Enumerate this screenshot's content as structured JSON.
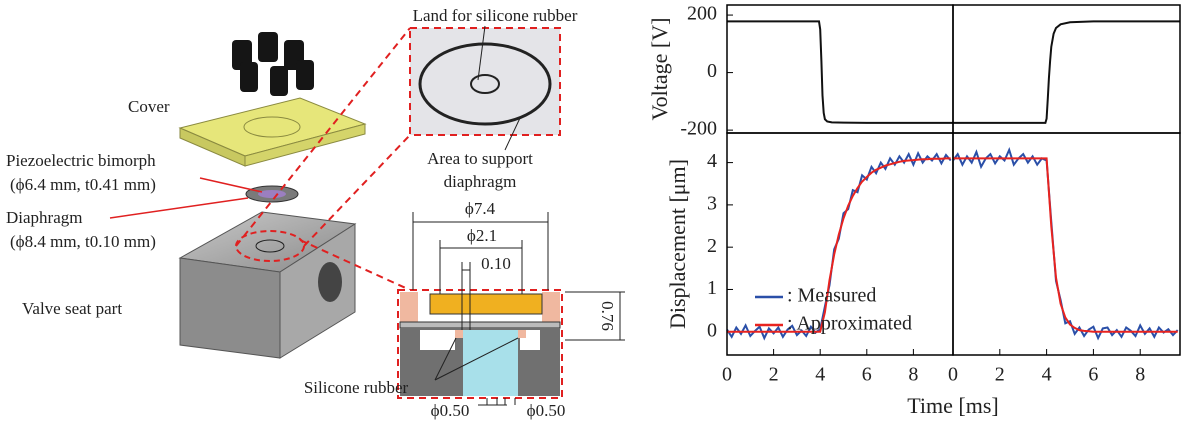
{
  "diagram": {
    "labels": [
      "Land for silicone rubber",
      "Cover",
      "Piezoelectric bimorph",
      "(ϕ6.4 mm, t0.41 mm)",
      "Diaphragm",
      "(ϕ8.4 mm, t0.10 mm)",
      "Area to support",
      "diaphragm",
      "Valve seat part",
      "ϕ7.4",
      "ϕ2.1",
      "0.10",
      "0.76",
      "Silicone rubber",
      "ϕ0.50",
      "ϕ0.50"
    ]
  },
  "chart_data": [
    {
      "type": "line",
      "ylabel": "Voltage [V]",
      "xlim": [
        0,
        9.7
      ],
      "ylim": [
        -210,
        235
      ],
      "yticks": [
        200,
        0,
        -200
      ],
      "x": [
        0,
        3.95,
        4.0,
        4.05,
        4.1,
        4.15,
        4.2,
        4.3,
        4.5,
        5,
        6,
        7,
        8,
        9,
        9.7
      ],
      "series": [
        {
          "color": "#111111",
          "values": [
            178,
            178,
            150,
            40,
            -80,
            -140,
            -162,
            -170,
            -173,
            -174,
            -175,
            -175,
            -175,
            -175,
            -175
          ]
        }
      ]
    },
    {
      "type": "line",
      "xlim": [
        0,
        9.7
      ],
      "ylim": [
        -210,
        235
      ],
      "x": [
        0,
        3.95,
        4.0,
        4.05,
        4.1,
        4.15,
        4.2,
        4.3,
        4.4,
        4.6,
        5,
        6,
        7,
        8,
        9,
        9.7
      ],
      "series": [
        {
          "color": "#111111",
          "values": [
            -175,
            -175,
            -160,
            -90,
            -20,
            40,
            90,
            135,
            155,
            168,
            175,
            178,
            178,
            178,
            178,
            178
          ]
        }
      ]
    },
    {
      "type": "line",
      "ylabel": "Displacement [μm]",
      "xlabel": "Time [ms]",
      "xlim": [
        0,
        9.7
      ],
      "ylim": [
        -0.55,
        4.7
      ],
      "xticks": [
        0,
        2,
        4,
        6,
        8
      ],
      "yticks": [
        0,
        1,
        2,
        3,
        4
      ],
      "legend": "lower-right",
      "x": [
        0,
        0.2,
        0.4,
        0.6,
        0.8,
        1.0,
        1.2,
        1.4,
        1.6,
        1.8,
        2.0,
        2.2,
        2.4,
        2.6,
        2.8,
        3.0,
        3.2,
        3.4,
        3.6,
        3.8,
        4.0,
        4.2,
        4.4,
        4.6,
        4.8,
        5.0,
        5.2,
        5.4,
        5.6,
        5.8,
        6.0,
        6.2,
        6.4,
        6.6,
        6.8,
        7.0,
        7.2,
        7.4,
        7.6,
        7.8,
        8.0,
        8.2,
        8.4,
        8.6,
        8.8,
        9.0,
        9.2,
        9.4,
        9.6
      ],
      "series": [
        {
          "name": ": Measured",
          "color": "#2a4fa8",
          "values": [
            0.05,
            -0.12,
            0.1,
            -0.05,
            0.15,
            -0.1,
            0.02,
            0.12,
            -0.15,
            0.08,
            -0.04,
            0.1,
            -0.12,
            0.05,
            0.14,
            -0.08,
            0.03,
            -0.1,
            0.12,
            -0.02,
            0.06,
            0.6,
            1.1,
            1.95,
            2.2,
            2.8,
            2.9,
            3.35,
            3.3,
            3.7,
            3.6,
            3.9,
            3.75,
            4.0,
            3.85,
            4.1,
            3.95,
            4.15,
            4.0,
            4.2,
            3.95,
            4.22,
            4.0,
            4.15,
            4.05,
            4.2,
            3.98,
            4.18,
            4.05
          ]
        },
        {
          "name": ": Approximated",
          "color": "#e8231f",
          "values": [
            0,
            0,
            0,
            0,
            0,
            0,
            0,
            0,
            0,
            0,
            0,
            0,
            0,
            0,
            0,
            0,
            0,
            0,
            0,
            0,
            0,
            0.46,
            1.22,
            1.83,
            2.3,
            2.68,
            2.98,
            3.21,
            3.4,
            3.55,
            3.66,
            3.76,
            3.83,
            3.88,
            3.93,
            3.96,
            3.99,
            4.02,
            4.04,
            4.05,
            4.06,
            4.07,
            4.08,
            4.08,
            4.09,
            4.09,
            4.09,
            4.1,
            4.1
          ]
        }
      ]
    },
    {
      "type": "line",
      "xlim": [
        0,
        9.7
      ],
      "ylim": [
        -0.55,
        4.7
      ],
      "xticks": [
        0,
        2,
        4,
        6,
        8
      ],
      "x": [
        0,
        0.2,
        0.4,
        0.6,
        0.8,
        1.0,
        1.2,
        1.4,
        1.6,
        1.8,
        2.0,
        2.2,
        2.4,
        2.6,
        2.8,
        3.0,
        3.2,
        3.4,
        3.6,
        3.8,
        4.0,
        4.2,
        4.4,
        4.6,
        4.8,
        5.0,
        5.2,
        5.4,
        5.6,
        5.8,
        6.0,
        6.2,
        6.4,
        6.6,
        6.8,
        7.0,
        7.2,
        7.4,
        7.6,
        7.8,
        8.0,
        8.2,
        8.4,
        8.6,
        8.8,
        9.0,
        9.2,
        9.4,
        9.6
      ],
      "series": [
        {
          "color": "#2a4fa8",
          "values": [
            4.05,
            4.2,
            3.95,
            4.15,
            4.0,
            4.25,
            3.9,
            4.1,
            4.2,
            3.98,
            4.15,
            4.05,
            4.3,
            3.95,
            4.1,
            4.2,
            4.0,
            4.15,
            3.95,
            4.1,
            4.05,
            2.6,
            1.2,
            0.75,
            0.2,
            0.25,
            -0.05,
            0.1,
            -0.1,
            0.05,
            0.12,
            -0.15,
            0.08,
            0.1,
            -0.08,
            0.04,
            -0.12,
            0.1,
            0.02,
            -0.1,
            0.15,
            -0.05,
            0.08,
            -0.12,
            0.1,
            -0.02,
            0.06,
            -0.08,
            0.04
          ]
        },
        {
          "color": "#e8231f",
          "values": [
            4.1,
            4.1,
            4.1,
            4.1,
            4.1,
            4.1,
            4.1,
            4.1,
            4.1,
            4.1,
            4.1,
            4.1,
            4.1,
            4.1,
            4.1,
            4.1,
            4.1,
            4.1,
            4.1,
            4.1,
            4.1,
            2.49,
            1.28,
            0.66,
            0.34,
            0.17,
            0.09,
            0.04,
            0.02,
            0.01,
            0,
            0,
            0,
            0,
            0,
            0,
            0,
            0,
            0,
            0,
            0,
            0,
            0,
            0,
            0,
            0,
            0,
            0,
            0
          ]
        }
      ]
    }
  ]
}
